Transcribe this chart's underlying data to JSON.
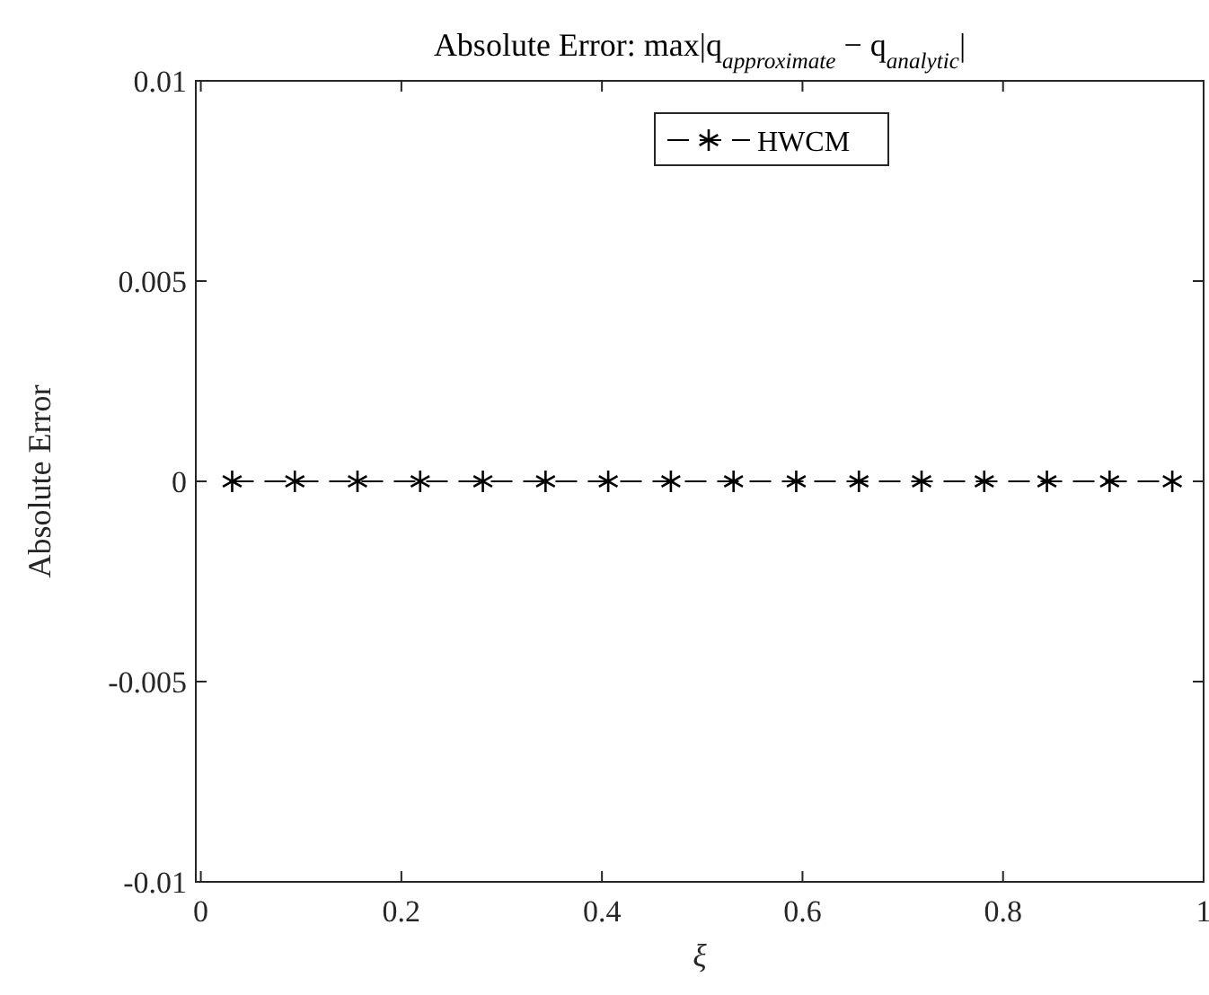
{
  "chart_data": {
    "type": "line",
    "title": "Absolute Error: max|q$_{approximate}$ − q$_{analytic}$|",
    "xlabel": "ξ",
    "ylabel": "Absolute Error",
    "x": [
      0.03125,
      0.09375,
      0.15625,
      0.21875,
      0.28125,
      0.34375,
      0.40625,
      0.46875,
      0.53125,
      0.59375,
      0.65625,
      0.71875,
      0.78125,
      0.84375,
      0.90625,
      0.96875
    ],
    "series": [
      {
        "name": "HWCM",
        "color": "#000000",
        "values": [
          0,
          0,
          0,
          0,
          0,
          0,
          0,
          0,
          0,
          0,
          0,
          0,
          0,
          0,
          0,
          0
        ]
      }
    ],
    "xlim": [
      -0.005,
      1
    ],
    "xticks": [
      0,
      0.2,
      0.4,
      0.6,
      0.8,
      1
    ],
    "ylim": [
      -0.01,
      0.01
    ],
    "yticks": [
      -0.01,
      -0.005,
      0,
      0.005,
      0.01
    ],
    "grid": false,
    "legend": "top",
    "marker": "cross",
    "line_style": "dashed"
  }
}
